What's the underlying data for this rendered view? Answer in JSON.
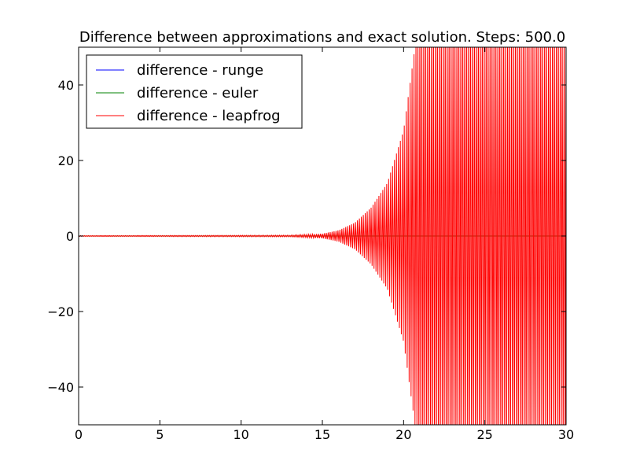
{
  "chart_data": {
    "type": "line",
    "title": "Difference between approximations and exact solution. Steps: 500.0",
    "xlabel": "",
    "ylabel": "",
    "xlim": [
      0,
      30
    ],
    "ylim": [
      -50,
      50
    ],
    "xticks": [
      0,
      5,
      10,
      15,
      20,
      25,
      30
    ],
    "xtick_labels": [
      "0",
      "5",
      "10",
      "15",
      "20",
      "25",
      "30"
    ],
    "yticks": [
      -40,
      -20,
      0,
      20,
      40
    ],
    "ytick_labels": [
      "−40",
      "−20",
      "0",
      "20",
      "40"
    ],
    "grid": false,
    "legend_position": "upper left",
    "series": [
      {
        "name": "difference - runge",
        "color": "#0000ff",
        "x": [
          0,
          30
        ],
        "y": [
          0,
          0
        ]
      },
      {
        "name": "difference - euler",
        "color": "#008000",
        "x": [
          0,
          30
        ],
        "y": [
          0,
          0
        ]
      },
      {
        "name": "difference - leapfrog",
        "color": "#ff0000",
        "style": "oscillating",
        "x": [
          0,
          13,
          15,
          16,
          17,
          18,
          19,
          20,
          20.7,
          21,
          25,
          30
        ],
        "envelope": [
          0.1,
          0.2,
          0.6,
          1.5,
          3.5,
          7.5,
          14,
          28,
          50,
          60,
          60,
          60
        ],
        "oscillation_period": 0.12
      }
    ]
  }
}
